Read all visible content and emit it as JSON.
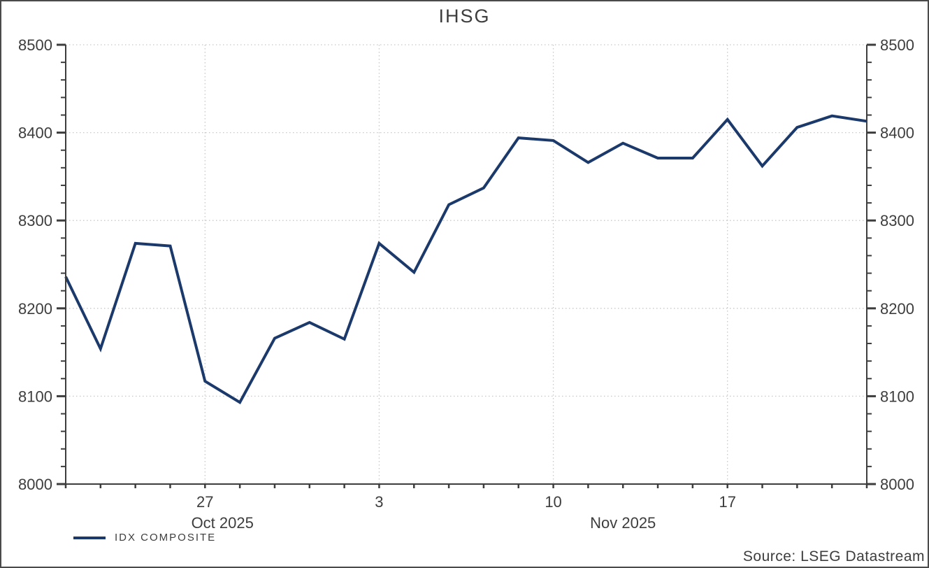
{
  "window": {
    "title": "IHSG"
  },
  "chart_data": {
    "type": "line",
    "title": "IHSG",
    "xlabel": "",
    "ylabel": "",
    "ylim": [
      8000,
      8500
    ],
    "y_major_step": 100,
    "y_minor_step": 20,
    "y_labels_both_sides": true,
    "grid": true,
    "legend_position": "bottom-left",
    "x": [
      "2025-10-21",
      "2025-10-22",
      "2025-10-23",
      "2025-10-24",
      "2025-10-27",
      "2025-10-28",
      "2025-10-29",
      "2025-10-30",
      "2025-10-31",
      "2025-11-03",
      "2025-11-04",
      "2025-11-05",
      "2025-11-06",
      "2025-11-07",
      "2025-11-10",
      "2025-11-11",
      "2025-11-12",
      "2025-11-13",
      "2025-11-14",
      "2025-11-17",
      "2025-11-18",
      "2025-11-19",
      "2025-11-20",
      "2025-11-21"
    ],
    "series": [
      {
        "name": "IDX COMPOSITE",
        "values": [
          8236,
          8154,
          8274,
          8271,
          8117,
          8093,
          8166,
          8184,
          8165,
          8274,
          8241,
          8318,
          8337,
          8394,
          8391,
          8366,
          8388,
          8371,
          8371,
          8415,
          8362,
          8406,
          8419,
          8413
        ]
      }
    ],
    "x_major_ticks": [
      {
        "index": 4,
        "label": "27"
      },
      {
        "index": 9,
        "label": "3"
      },
      {
        "index": 14,
        "label": "10"
      },
      {
        "index": 19,
        "label": "17"
      }
    ],
    "x_month_labels": [
      {
        "center_index": 4.5,
        "label": "Oct 2025"
      },
      {
        "center_index": 16,
        "label": "Nov 2025"
      }
    ]
  },
  "legend": {
    "label": "IDX COMPOSITE"
  },
  "source": "Source: LSEG Datastream",
  "colors": {
    "line": "#1b3a6b",
    "axis": "#3d3d3d",
    "text": "#3d3d3d",
    "grid": "#c8c8c8",
    "border": "#4a4a4a",
    "background": "#ffffff"
  }
}
